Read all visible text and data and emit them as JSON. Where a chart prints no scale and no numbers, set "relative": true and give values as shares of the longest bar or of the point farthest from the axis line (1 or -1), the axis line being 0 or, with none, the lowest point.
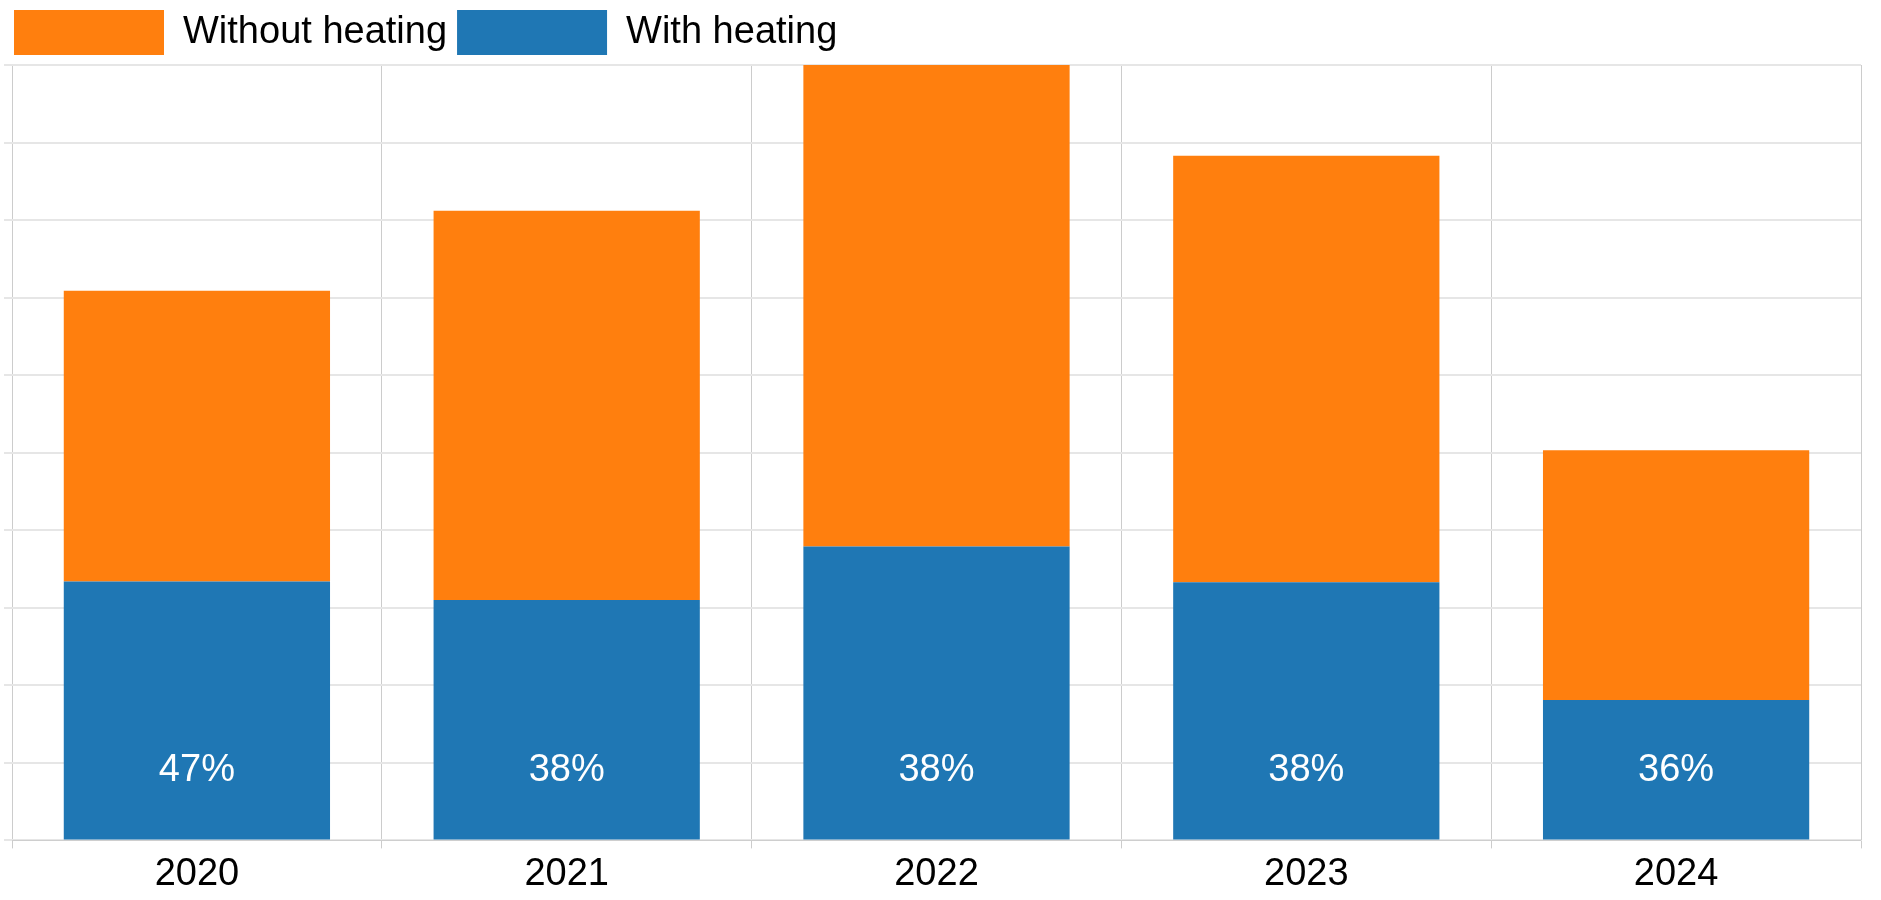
{
  "chart_data": {
    "type": "bar",
    "stacked": true,
    "relative": true,
    "categories": [
      "2020",
      "2021",
      "2022",
      "2023",
      "2024"
    ],
    "series": [
      {
        "name": "With heating",
        "color": "#1f77b4",
        "values": [
          0.334,
          0.31,
          0.379,
          0.333,
          0.181
        ]
      },
      {
        "name": "Without heating",
        "color": "#ff7f0e",
        "values": [
          0.375,
          0.502,
          0.621,
          0.55,
          0.322
        ]
      }
    ],
    "annotations": [
      "47%",
      "38%",
      "38%",
      "38%",
      "36%"
    ],
    "grid": true,
    "legend": "top left"
  }
}
